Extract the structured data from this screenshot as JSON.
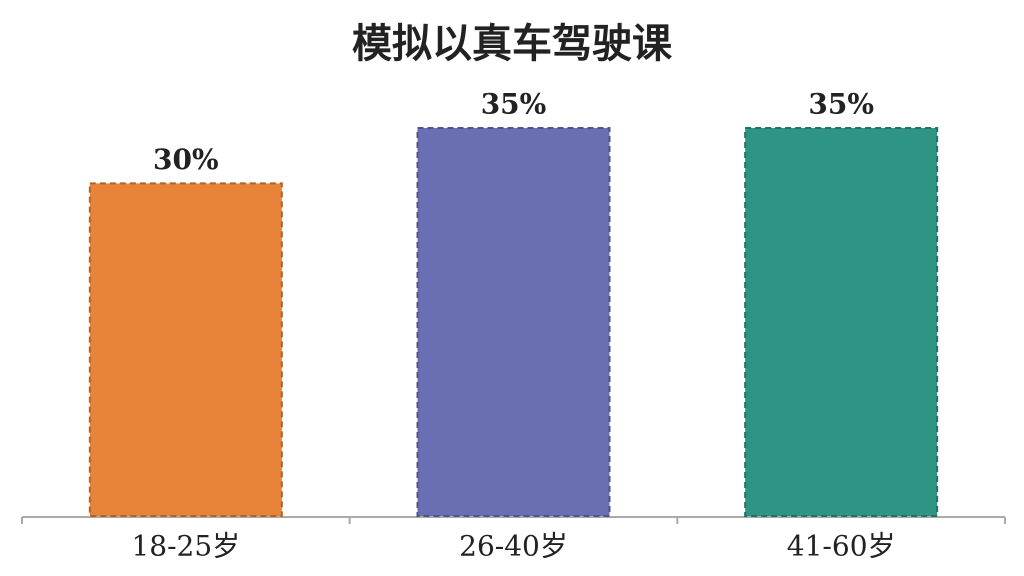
{
  "chart_data": {
    "type": "bar",
    "title": "模拟以真车驾驶课",
    "categories": [
      "18-25岁",
      "26-40岁",
      "41-60岁"
    ],
    "values": [
      30,
      35,
      35
    ],
    "value_labels": [
      "30%",
      "35%",
      "35%"
    ],
    "colors": [
      "#e8843a",
      "#6a6fb4",
      "#2e9585"
    ]
  }
}
